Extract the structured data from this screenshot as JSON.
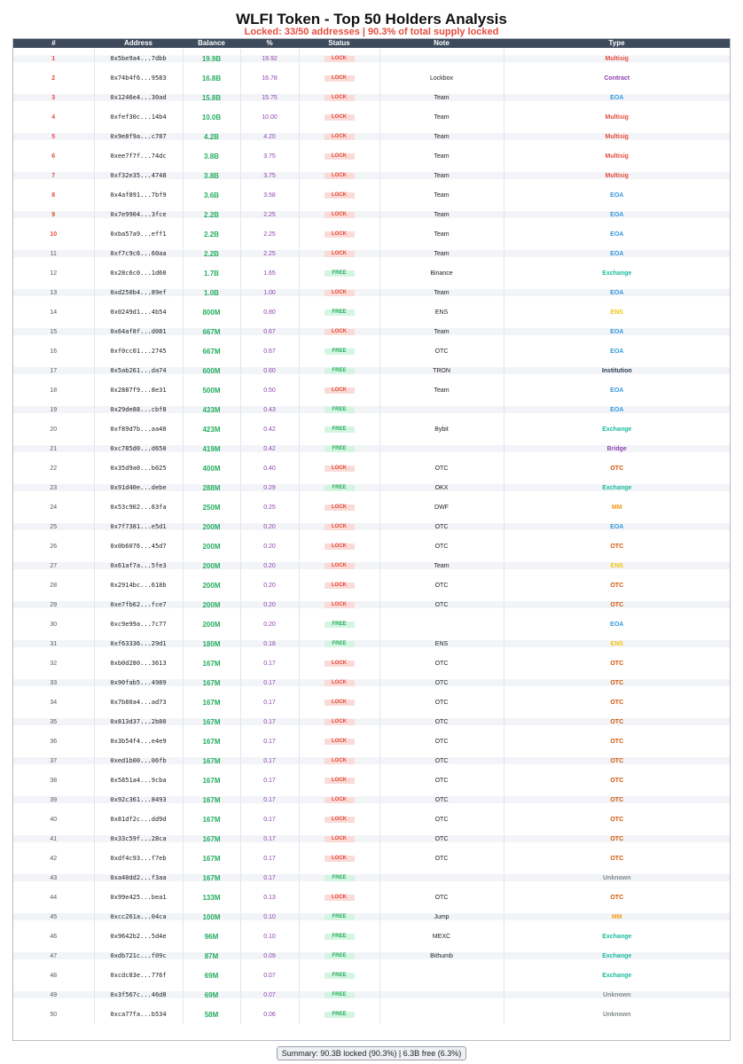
{
  "header": {
    "title": "WLFI Token - Top 50 Holders Analysis",
    "subtitle": "Locked: 33/50 addresses | 90.3% of total supply locked"
  },
  "table": {
    "columns": [
      "#",
      "Address",
      "Balance",
      "%",
      "Status",
      "Note",
      "Type"
    ],
    "rows": [
      [
        1,
        "0x5be9a4...7dbb",
        "19.9B",
        "19.92",
        "LOCK",
        null,
        "Multisig"
      ],
      [
        2,
        "0x74b4f6...9583",
        "16.8B",
        "16.78",
        "LOCK",
        "Lockbox",
        "Contract"
      ],
      [
        3,
        "0x1246e4...30ad",
        "15.8B",
        "15.75",
        "LOCK",
        "Team",
        "EOA"
      ],
      [
        4,
        "0xfef30c...14b4",
        "10.0B",
        "10.00",
        "LOCK",
        "Team",
        "Multisig"
      ],
      [
        5,
        "0x9e8f9a...c787",
        "4.2B",
        "4.20",
        "LOCK",
        "Team",
        "Multisig"
      ],
      [
        6,
        "0xee7f7f...74dc",
        "3.8B",
        "3.75",
        "LOCK",
        "Team",
        "Multisig"
      ],
      [
        7,
        "0xf32e35...4748",
        "3.8B",
        "3.75",
        "LOCK",
        "Team",
        "Multisig"
      ],
      [
        8,
        "0x4af891...7bf9",
        "3.6B",
        "3.58",
        "LOCK",
        "Team",
        "EOA"
      ],
      [
        9,
        "0x7e9904...3fce",
        "2.2B",
        "2.25",
        "LOCK",
        "Team",
        "EOA"
      ],
      [
        10,
        "0xba57a9...eff1",
        "2.2B",
        "2.25",
        "LOCK",
        "Team",
        "EOA"
      ],
      [
        11,
        "0xf7c9c6...60aa",
        "2.2B",
        "2.25",
        "LOCK",
        "Team",
        "EOA"
      ],
      [
        12,
        "0x28c6c0...1d60",
        "1.7B",
        "1.65",
        "FREE",
        "Binance",
        "Exchange"
      ],
      [
        13,
        "0xd250b4...89ef",
        "1.0B",
        "1.00",
        "LOCK",
        "Team",
        "EOA"
      ],
      [
        14,
        "0x0249d1...4b54",
        "800M",
        "0.80",
        "FREE",
        "ENS",
        "ENS"
      ],
      [
        15,
        "0x64af8f...d081",
        "667M",
        "0.67",
        "LOCK",
        "Team",
        "EOA"
      ],
      [
        16,
        "0xf0cc01...2745",
        "667M",
        "0.67",
        "FREE",
        "OTC",
        "EOA"
      ],
      [
        17,
        "0x5ab261...da74",
        "600M",
        "0.60",
        "FREE",
        "TRON",
        "Institution"
      ],
      [
        18,
        "0x2887f9...8e31",
        "500M",
        "0.50",
        "LOCK",
        "Team",
        "EOA"
      ],
      [
        19,
        "0x29de88...cbf8",
        "433M",
        "0.43",
        "FREE",
        null,
        "EOA"
      ],
      [
        20,
        "0xf89d7b...aa40",
        "423M",
        "0.42",
        "FREE",
        "Bybit",
        "Exchange"
      ],
      [
        21,
        "0xc785d0...d650",
        "419M",
        "0.42",
        "FREE",
        null,
        "Bridge"
      ],
      [
        22,
        "0x35d9a0...b025",
        "400M",
        "0.40",
        "LOCK",
        "OTC",
        "OTC"
      ],
      [
        23,
        "0x91d40e...debe",
        "288M",
        "0.29",
        "FREE",
        "OKX",
        "Exchange"
      ],
      [
        24,
        "0x53c902...63fa",
        "250M",
        "0.25",
        "LOCK",
        "DWF",
        "MM"
      ],
      [
        25,
        "0x7f7381...e5d1",
        "200M",
        "0.20",
        "LOCK",
        "OTC",
        "EOA"
      ],
      [
        26,
        "0x0b6076...45d7",
        "200M",
        "0.20",
        "LOCK",
        "OTC",
        "OTC"
      ],
      [
        27,
        "0x61af7a...5fe3",
        "200M",
        "0.20",
        "LOCK",
        "Team",
        "ENS"
      ],
      [
        28,
        "0x2914bc...618b",
        "200M",
        "0.20",
        "LOCK",
        "OTC",
        "OTC"
      ],
      [
        29,
        "0xe7fb62...fce7",
        "200M",
        "0.20",
        "LOCK",
        "OTC",
        "OTC"
      ],
      [
        30,
        "0xc9e99a...7c77",
        "200M",
        "0.20",
        "FREE",
        null,
        "EOA"
      ],
      [
        31,
        "0xf63336...29d1",
        "180M",
        "0.18",
        "FREE",
        "ENS",
        "ENS"
      ],
      [
        32,
        "0xb0d280...3613",
        "167M",
        "0.17",
        "LOCK",
        "OTC",
        "OTC"
      ],
      [
        33,
        "0x90fab5...4989",
        "167M",
        "0.17",
        "LOCK",
        "OTC",
        "OTC"
      ],
      [
        34,
        "0x7b80a4...ad73",
        "167M",
        "0.17",
        "LOCK",
        "OTC",
        "OTC"
      ],
      [
        35,
        "0x813d37...2b80",
        "167M",
        "0.17",
        "LOCK",
        "OTC",
        "OTC"
      ],
      [
        36,
        "0x3b54f4...e4e9",
        "167M",
        "0.17",
        "LOCK",
        "OTC",
        "OTC"
      ],
      [
        37,
        "0xed1b00...06fb",
        "167M",
        "0.17",
        "LOCK",
        "OTC",
        "OTC"
      ],
      [
        38,
        "0x5851a4...9cba",
        "167M",
        "0.17",
        "LOCK",
        "OTC",
        "OTC"
      ],
      [
        39,
        "0x92c361...8493",
        "167M",
        "0.17",
        "LOCK",
        "OTC",
        "OTC"
      ],
      [
        40,
        "0x81df2c...dd9d",
        "167M",
        "0.17",
        "LOCK",
        "OTC",
        "OTC"
      ],
      [
        41,
        "0x33c59f...28ca",
        "167M",
        "0.17",
        "LOCK",
        "OTC",
        "OTC"
      ],
      [
        42,
        "0xdf4c93...f7eb",
        "167M",
        "0.17",
        "LOCK",
        "OTC",
        "OTC"
      ],
      [
        43,
        "0xa40dd2...f3aa",
        "167M",
        "0.17",
        "FREE",
        null,
        "Unknown"
      ],
      [
        44,
        "0x99e425...bea1",
        "133M",
        "0.13",
        "LOCK",
        "OTC",
        "OTC"
      ],
      [
        45,
        "0xcc261a...04ca",
        "100M",
        "0.10",
        "FREE",
        "Jump",
        "MM"
      ],
      [
        46,
        "0x9642b2...5d4e",
        "96M",
        "0.10",
        "FREE",
        "MEXC",
        "Exchange"
      ],
      [
        47,
        "0xdb721c...f09c",
        "87M",
        "0.09",
        "FREE",
        "Bithumb",
        "Exchange"
      ],
      [
        48,
        "0xcdc83e...776f",
        "69M",
        "0.07",
        "FREE",
        null,
        "Exchange"
      ],
      [
        49,
        "0x3f567c...46d8",
        "69M",
        "0.07",
        "FREE",
        null,
        "Unknown"
      ],
      [
        50,
        "0xca77fa...b534",
        "58M",
        "0.06",
        "FREE",
        null,
        "Unknown"
      ]
    ],
    "status_styles": {
      "LOCK": {
        "color": "#e74c3c",
        "background": "#fadbd8"
      },
      "FREE": {
        "color": "#27ae60",
        "background": "#d5f5e3"
      }
    },
    "type_colors": {
      "Multisig": "#e74c3c",
      "Contract": "#8e44ad",
      "EOA": "#3498db",
      "Exchange": "#1abc9c",
      "ENS": "#f1c40f",
      "Institution": "#2c3e50",
      "Bridge": "#8e44ad",
      "OTC": "#d35400",
      "MM": "#f39c12",
      "Unknown": "#7f8c8d"
    }
  },
  "footer": {
    "summary": "Summary: 90.3B locked (90.3%) | 6.3B free (6.3%)"
  }
}
